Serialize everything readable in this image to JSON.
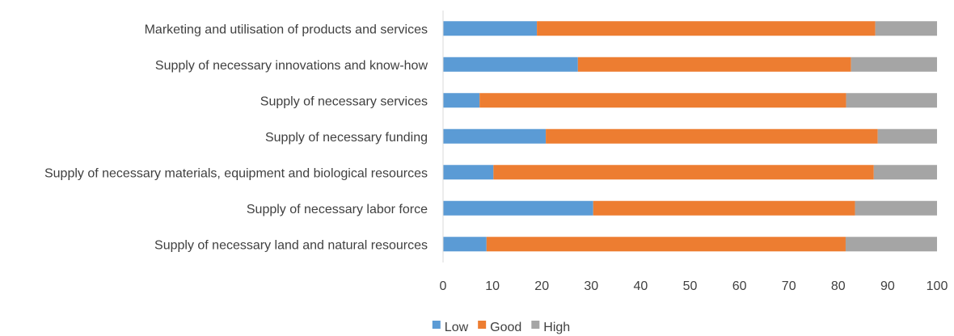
{
  "chart_data": {
    "type": "bar",
    "orientation": "horizontal",
    "stacked": true,
    "categories": [
      "Marketing and utilisation of products and services",
      "Supply of necessary innovations and know-how",
      "Supply of necessary services",
      "Supply of necessary funding",
      "Supply of necessary materials, equipment and biological resources",
      "Supply of necessary labor force",
      "Supply of necessary land and natural resources"
    ],
    "series": [
      {
        "name": "Low",
        "color": "#5B9BD5",
        "values": [
          19,
          27.3,
          7.4,
          20.8,
          10.2,
          30.4,
          8.8
        ]
      },
      {
        "name": "Good",
        "color": "#ED7D31",
        "values": [
          68.5,
          55.3,
          74.2,
          67.2,
          77.0,
          53.0,
          72.7
        ]
      },
      {
        "name": "High",
        "color": "#A5A5A5",
        "values": [
          12.5,
          17.4,
          18.4,
          12.0,
          12.8,
          16.6,
          18.5
        ]
      }
    ],
    "xlim": [
      0,
      100
    ],
    "xticks": [
      "0",
      "10",
      "20",
      "30",
      "40",
      "50",
      "60",
      "70",
      "80",
      "90",
      "100"
    ],
    "grid": false,
    "legend_position": "bottom"
  }
}
